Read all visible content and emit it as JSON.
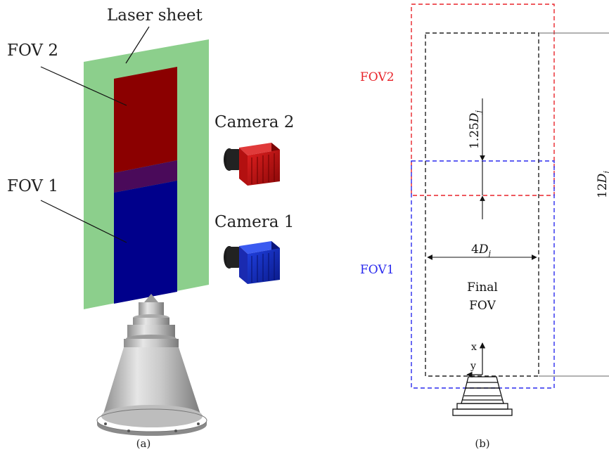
{
  "panel_a": {
    "caption": "(a)",
    "laser_sheet_label": "Laser sheet",
    "fov2_label": "FOV 2",
    "fov1_label": "FOV 1",
    "camera2_label": "Camera 2",
    "camera1_label": "Camera 1",
    "colors": {
      "laser_sheet": "#8ccf8c",
      "fov2": "#8b0000",
      "fov1": "#00008b",
      "overlap": "#4a0a5a",
      "camera2": "#c41010",
      "camera1": "#1530c0",
      "nozzle": "#b9b9b9"
    }
  },
  "panel_b": {
    "caption": "(b)",
    "fov2_label": "FOV2",
    "fov1_label": "FOV1",
    "overlap_dim_prefix": "1.25",
    "width_dim_prefix": "4",
    "height_dim_prefix": "12",
    "dim_symbol": "D",
    "dim_subscript": "j",
    "final_fov_line1": "Final",
    "final_fov_line2": "FOV",
    "axis_x_label": "x",
    "axis_y_label": "y",
    "colors": {
      "fov2": "#e8242a",
      "fov1": "#2a2aee",
      "final": "#222222"
    }
  }
}
